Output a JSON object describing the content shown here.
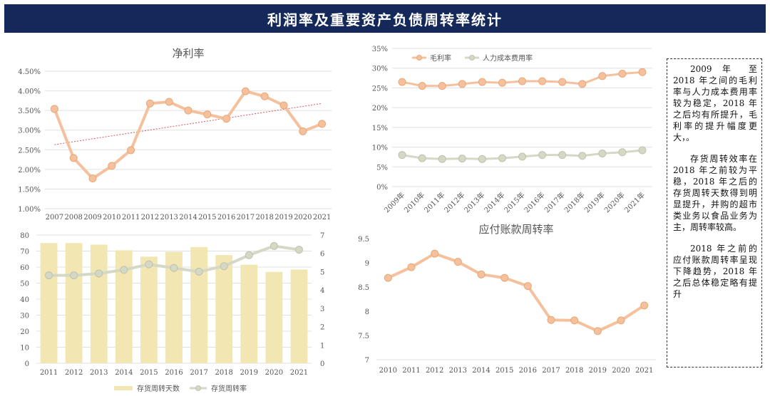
{
  "header": {
    "title": "利润率及重要资产负债周转率统计"
  },
  "note": {
    "paragraphs": [
      "2009 年 至 2018 年之间的毛利率与人力成本费用率较为稳定，2018 年之后均有所提升，毛利率的提升幅度更大，。",
      "存货周转效率在 2018 年之前较为平稳，2018 年之后的存货周转天数得到明显提升，并购的超市类业务以食品业务为主，周转率较高。",
      "2018 年之前的应付账款周转率呈现下降趋势，2018 年之后总体稳定略有提升"
    ]
  },
  "colors": {
    "header_bg": "#14285a",
    "orange": "#f5c19d",
    "orange_dark": "#e8a878",
    "grey": "#d5d8c5",
    "grey_dark": "#bfc2ad",
    "bar": "#f2e6b3",
    "trend": "#e05555",
    "grid": "#e0e0e0"
  },
  "chart_data": [
    {
      "id": "net_margin",
      "type": "line",
      "title": "净利率",
      "x": [
        "2007",
        "2008",
        "2009",
        "2010",
        "2011",
        "2012",
        "2013",
        "2014",
        "2015",
        "2016",
        "2017",
        "2018",
        "2019",
        "2020",
        "2021"
      ],
      "series": [
        {
          "name": "净利率",
          "values": [
            3.54,
            2.29,
            1.77,
            2.09,
            2.49,
            3.68,
            3.72,
            3.5,
            3.4,
            3.29,
            3.99,
            3.86,
            3.63,
            2.97,
            3.16
          ]
        }
      ],
      "ylim": [
        1.0,
        4.5
      ],
      "yticks": [
        1.0,
        1.5,
        2.0,
        2.5,
        3.0,
        3.5,
        4.0,
        4.5
      ],
      "ytick_labels": [
        "1.00%",
        "1.50%",
        "2.00%",
        "2.50%",
        "3.00%",
        "3.50%",
        "4.00%",
        "4.50%"
      ],
      "trendline": [
        2.63,
        3.68
      ]
    },
    {
      "id": "gross_margin",
      "type": "line",
      "title": "",
      "x": [
        "2009年",
        "2010年",
        "2011年",
        "2012年",
        "2013年",
        "2014年",
        "2015年",
        "2016年",
        "2017年",
        "2018年",
        "2019年",
        "2020年",
        "2021年"
      ],
      "series": [
        {
          "name": "毛利率",
          "values": [
            26.5,
            25.5,
            25.5,
            26.0,
            26.5,
            26.3,
            26.7,
            26.7,
            26.5,
            26.0,
            28.0,
            28.6,
            29.0
          ]
        },
        {
          "name": "人力成本费用率",
          "values": [
            8.0,
            7.2,
            7.0,
            7.1,
            7.0,
            7.2,
            7.6,
            8.0,
            8.0,
            7.8,
            8.4,
            8.7,
            9.2
          ]
        }
      ],
      "ylim": [
        0,
        35
      ],
      "yticks": [
        0,
        5,
        10,
        15,
        20,
        25,
        30,
        35
      ],
      "ytick_labels": [
        "0%",
        "5%",
        "10%",
        "15%",
        "20%",
        "25%",
        "30%",
        "35%"
      ],
      "legend": "top-left"
    },
    {
      "id": "inventory",
      "type": "bar+line",
      "title": "",
      "x": [
        "2011",
        "2012",
        "2013",
        "2014",
        "2015",
        "2016",
        "2017",
        "2018",
        "2019",
        "2020",
        "2021"
      ],
      "bar_series": {
        "name": "存货周转天数",
        "values": [
          75,
          75,
          74,
          70.5,
          66.5,
          69.5,
          72.5,
          67.5,
          61.5,
          57,
          58.5
        ]
      },
      "line_series": {
        "name": "存货周转率",
        "values": [
          4.8,
          4.8,
          4.9,
          5.1,
          5.4,
          5.2,
          5.0,
          5.3,
          5.9,
          6.4,
          6.2
        ]
      },
      "ylim_left": [
        0,
        80
      ],
      "yticks_left": [
        0,
        10,
        20,
        30,
        40,
        50,
        60,
        70,
        80
      ],
      "ylim_right": [
        0,
        7
      ],
      "yticks_right": [
        0,
        1,
        2,
        3,
        4,
        5,
        6,
        7
      ],
      "legend": "bottom"
    },
    {
      "id": "payables",
      "type": "line",
      "title": "应付账款周转率",
      "x": [
        "2010",
        "2011",
        "2012",
        "2013",
        "2014",
        "2015",
        "2016",
        "2017",
        "2018",
        "2019",
        "2020",
        "2021"
      ],
      "series": [
        {
          "name": "应付账款周转率",
          "values": [
            8.69,
            8.91,
            9.19,
            9.02,
            8.76,
            8.69,
            8.52,
            7.82,
            7.81,
            7.59,
            7.81,
            8.12
          ]
        }
      ],
      "ylim": [
        7,
        9.5
      ],
      "yticks": [
        7,
        7.5,
        8,
        8.5,
        9,
        9.5
      ],
      "ytick_labels": [
        "7",
        "7.5",
        "8",
        "8.5",
        "9",
        "9.5"
      ]
    }
  ]
}
